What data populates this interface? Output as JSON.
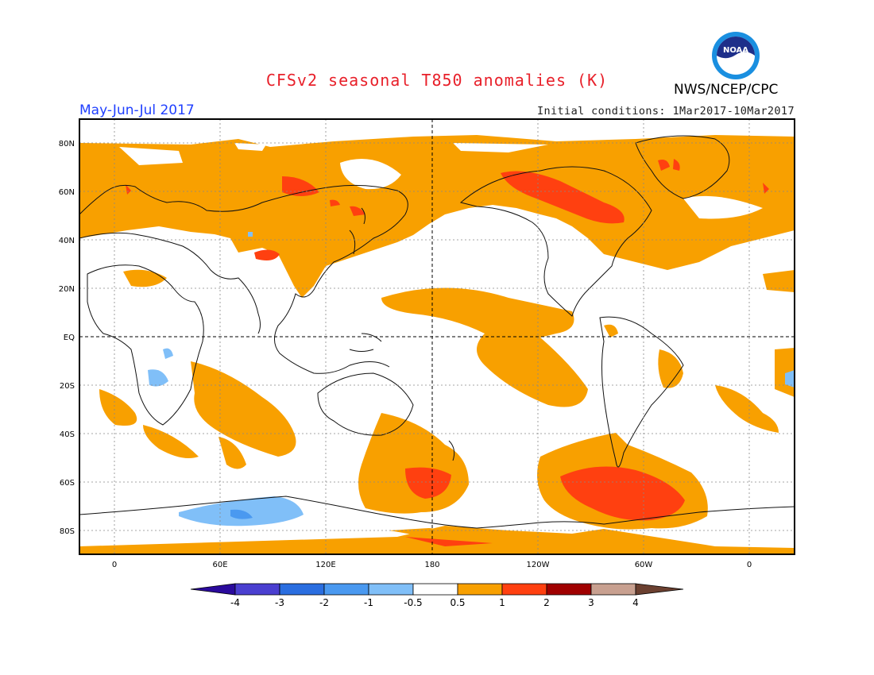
{
  "header": {
    "title": "CFSv2 seasonal T850 anomalies (K)",
    "agency": "NWS/NCEP/CPC",
    "logo_text": "NOAA",
    "period": "May-Jun-Jul 2017",
    "initial_conditions": "Initial conditions: 1Mar2017-10Mar2017"
  },
  "map": {
    "lat_labels": [
      "80N",
      "60N",
      "40N",
      "20N",
      "EQ",
      "20S",
      "40S",
      "60S",
      "80S"
    ],
    "lon_labels": [
      "0",
      "60E",
      "120E",
      "180",
      "120W",
      "60W",
      "0"
    ]
  },
  "colorbar": {
    "tick_labels": [
      "-4",
      "-3",
      "-2",
      "-1",
      "-0.5",
      "0.5",
      "1",
      "2",
      "3",
      "4"
    ],
    "colors": [
      "#2a0a9c",
      "#4a3fd0",
      "#2a6ee0",
      "#4a99f0",
      "#80bff8",
      "#ffffff",
      "#f8a000",
      "#ff4010",
      "#a00000",
      "#c8a090",
      "#6b4030"
    ]
  }
}
